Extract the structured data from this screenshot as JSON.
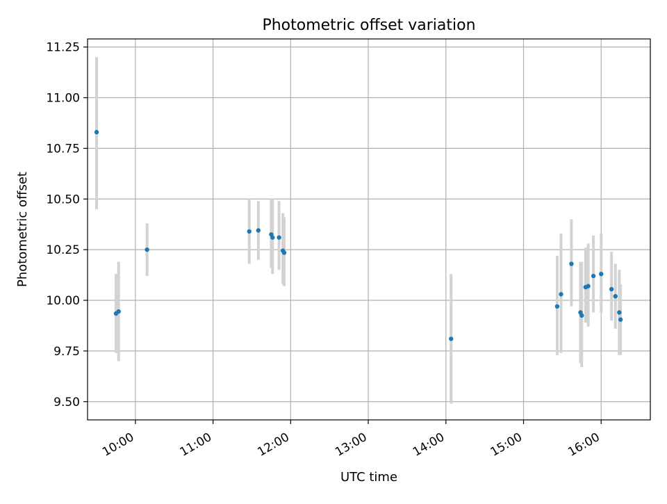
{
  "chart_data": {
    "type": "scatter",
    "title": "Photometric offset variation",
    "xlabel": "UTC time",
    "ylabel": "Photometric offset",
    "x_axis_type": "time",
    "x_ticks": [
      "10:00",
      "11:00",
      "12:00",
      "13:00",
      "14:00",
      "15:00",
      "16:00"
    ],
    "y_ticks": [
      "9.50",
      "9.75",
      "10.00",
      "10.25",
      "10.50",
      "10.75",
      "11.00",
      "11.25"
    ],
    "xlim": [
      "09:23",
      "16:38"
    ],
    "ylim": [
      9.41,
      11.29
    ],
    "grid": true,
    "legend": "none",
    "colors": {
      "points": "#1f77b4",
      "errorbars": "#d3d3d3",
      "grid": "#b0b0b0"
    },
    "points": [
      {
        "x": "09:30",
        "y": 10.83,
        "ylow": 10.45,
        "yhigh": 11.2
      },
      {
        "x": "09:45",
        "y": 9.935,
        "ylow": 9.74,
        "yhigh": 10.13
      },
      {
        "x": "09:47",
        "y": 9.945,
        "ylow": 9.7,
        "yhigh": 10.19
      },
      {
        "x": "10:09",
        "y": 10.25,
        "ylow": 10.12,
        "yhigh": 10.38
      },
      {
        "x": "11:28",
        "y": 10.34,
        "ylow": 10.18,
        "yhigh": 10.5
      },
      {
        "x": "11:35",
        "y": 10.345,
        "ylow": 10.2,
        "yhigh": 10.49
      },
      {
        "x": "11:45",
        "y": 10.325,
        "ylow": 10.16,
        "yhigh": 10.5
      },
      {
        "x": "11:46",
        "y": 10.31,
        "ylow": 10.13,
        "yhigh": 10.5
      },
      {
        "x": "11:51",
        "y": 10.31,
        "ylow": 10.15,
        "yhigh": 10.49
      },
      {
        "x": "11:54",
        "y": 10.245,
        "ylow": 10.08,
        "yhigh": 10.43
      },
      {
        "x": "11:55",
        "y": 10.235,
        "ylow": 10.07,
        "yhigh": 10.41
      },
      {
        "x": "14:04",
        "y": 9.81,
        "ylow": 9.49,
        "yhigh": 10.13
      },
      {
        "x": "15:26",
        "y": 9.97,
        "ylow": 9.73,
        "yhigh": 10.22
      },
      {
        "x": "15:29",
        "y": 10.03,
        "ylow": 9.74,
        "yhigh": 10.33
      },
      {
        "x": "15:37",
        "y": 10.18,
        "ylow": 9.97,
        "yhigh": 10.4
      },
      {
        "x": "15:44",
        "y": 9.94,
        "ylow": 9.69,
        "yhigh": 10.19
      },
      {
        "x": "15:45",
        "y": 9.925,
        "ylow": 9.67,
        "yhigh": 10.19
      },
      {
        "x": "15:48",
        "y": 10.065,
        "ylow": 9.89,
        "yhigh": 10.26
      },
      {
        "x": "15:50",
        "y": 10.07,
        "ylow": 9.87,
        "yhigh": 10.28
      },
      {
        "x": "15:54",
        "y": 10.12,
        "ylow": 9.94,
        "yhigh": 10.32
      },
      {
        "x": "16:00",
        "y": 10.13,
        "ylow": 9.94,
        "yhigh": 10.33
      },
      {
        "x": "16:08",
        "y": 10.055,
        "ylow": 9.9,
        "yhigh": 10.24
      },
      {
        "x": "16:11",
        "y": 10.02,
        "ylow": 9.86,
        "yhigh": 10.18
      },
      {
        "x": "16:14",
        "y": 9.94,
        "ylow": 9.73,
        "yhigh": 10.15
      },
      {
        "x": "16:15",
        "y": 9.905,
        "ylow": 9.73,
        "yhigh": 10.08
      }
    ]
  }
}
